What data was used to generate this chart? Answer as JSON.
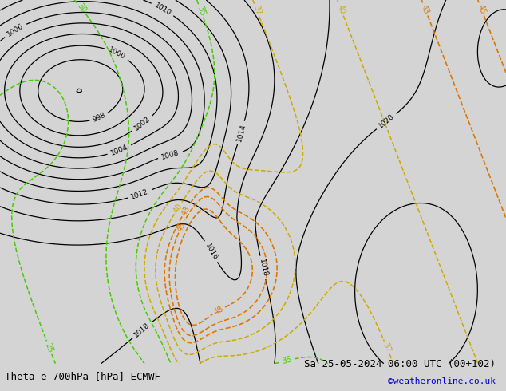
{
  "title_left": "Theta-e 700hPa [hPa] ECMWF",
  "title_right": "Sa 25-05-2024 06:00 UTC (00+102)",
  "credit": "©weatheronline.co.uk",
  "sea_color": "#d4d4d4",
  "land_color": "#c8e8b0",
  "border_color": "#888888",
  "coast_color": "#555555",
  "fig_width": 6.34,
  "fig_height": 4.9,
  "dpi": 100,
  "title_fontsize": 9,
  "credit_fontsize": 8,
  "credit_color": "#0000cc",
  "lon_min": -25,
  "lon_max": 20,
  "lat_min": 42,
  "lat_max": 62
}
